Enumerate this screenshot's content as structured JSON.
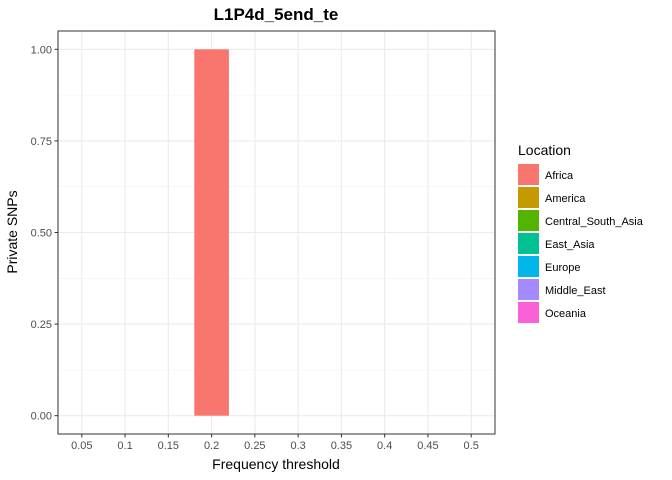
{
  "chart_data": {
    "type": "bar",
    "title": "L1P4d_5end_te",
    "xlabel": "Frequency threshold",
    "ylabel": "Private SNPs",
    "x_ticks": [
      "0.05",
      "0.1",
      "0.15",
      "0.2",
      "0.25",
      "0.3",
      "0.35",
      "0.4",
      "0.45",
      "0.5"
    ],
    "x_tick_values": [
      0.05,
      0.1,
      0.15,
      0.2,
      0.25,
      0.3,
      0.35,
      0.4,
      0.45,
      0.5
    ],
    "y_ticks": [
      "0.00",
      "0.25",
      "0.50",
      "0.75",
      "1.00"
    ],
    "y_tick_values": [
      0,
      0.25,
      0.5,
      0.75,
      1.0
    ],
    "xlim": [
      0.0225,
      0.5275
    ],
    "ylim": [
      -0.05,
      1.05
    ],
    "grid": true,
    "bar_width": 0.05,
    "bars": [
      {
        "x": 0.2,
        "value": 1.0,
        "series": "Africa"
      }
    ],
    "legend": {
      "title": "Location",
      "placement": "right",
      "entries": [
        {
          "name": "Africa",
          "color": "#F8766D"
        },
        {
          "name": "America",
          "color": "#C49A00"
        },
        {
          "name": "Central_South_Asia",
          "color": "#53B400"
        },
        {
          "name": "East_Asia",
          "color": "#00C094"
        },
        {
          "name": "Europe",
          "color": "#00B6EB"
        },
        {
          "name": "Middle_East",
          "color": "#A58AFF"
        },
        {
          "name": "Oceania",
          "color": "#FB61D7"
        }
      ]
    }
  }
}
